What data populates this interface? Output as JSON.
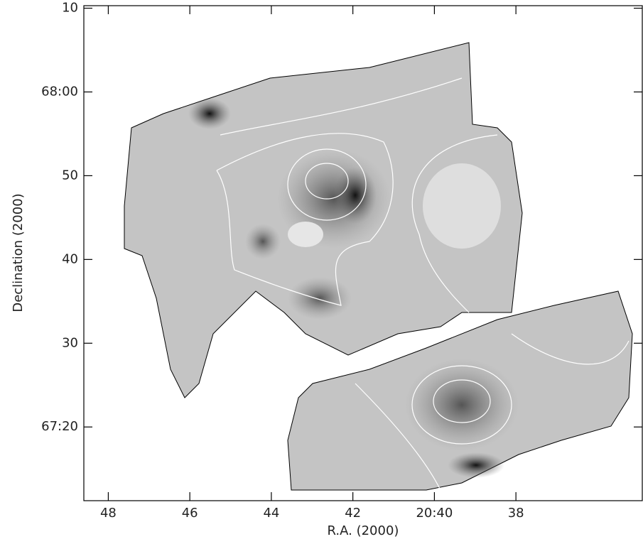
{
  "chart_data": {
    "type": "image",
    "xlabel": "R.A. (2000)",
    "ylabel": "Declination (2000)",
    "xlim": [
      48.6,
      34.9
    ],
    "ylim": [
      11.2,
      70.3
    ],
    "xticks": [
      48,
      46,
      44,
      42,
      {
        "value": 40,
        "label": "20:40"
      },
      38
    ],
    "yticks": [
      {
        "value": 70,
        "label": "10"
      },
      {
        "value": 60,
        "label": "68:00"
      },
      50,
      40,
      30,
      {
        "value": 20,
        "label": "67:20"
      }
    ]
  }
}
